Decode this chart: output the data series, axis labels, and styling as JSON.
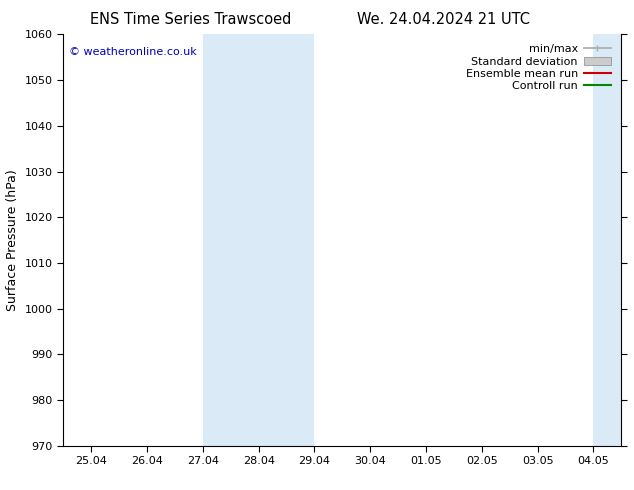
{
  "title_left": "ENS Time Series Trawscoed",
  "title_right": "We. 24.04.2024 21 UTC",
  "ylabel": "Surface Pressure (hPa)",
  "ylim": [
    970,
    1060
  ],
  "yticks": [
    970,
    980,
    990,
    1000,
    1010,
    1020,
    1030,
    1040,
    1050,
    1060
  ],
  "xtick_labels": [
    "25.04",
    "26.04",
    "27.04",
    "28.04",
    "29.04",
    "30.04",
    "01.05",
    "02.05",
    "03.05",
    "04.05"
  ],
  "xtick_positions": [
    0,
    1,
    2,
    3,
    4,
    5,
    6,
    7,
    8,
    9
  ],
  "xlim": [
    -0.5,
    9.5
  ],
  "shaded_bands": [
    {
      "x_start": 2.0,
      "x_end": 4.0,
      "color": "#daeaf7"
    },
    {
      "x_start": 9.0,
      "x_end": 9.5,
      "color": "#daeaf7"
    }
  ],
  "legend_items": [
    {
      "label": "min/max",
      "color": "#aaaaaa",
      "style": "minmax"
    },
    {
      "label": "Standard deviation",
      "color": "#cccccc",
      "style": "band"
    },
    {
      "label": "Ensemble mean run",
      "color": "#cc0000",
      "style": "line"
    },
    {
      "label": "Controll run",
      "color": "#008800",
      "style": "line"
    }
  ],
  "copyright_text": "© weatheronline.co.uk",
  "copyright_color": "#0000bb",
  "background_color": "#ffffff",
  "plot_bg_color": "#ffffff",
  "title_fontsize": 10.5,
  "axis_label_fontsize": 9,
  "tick_fontsize": 8,
  "legend_fontsize": 8
}
